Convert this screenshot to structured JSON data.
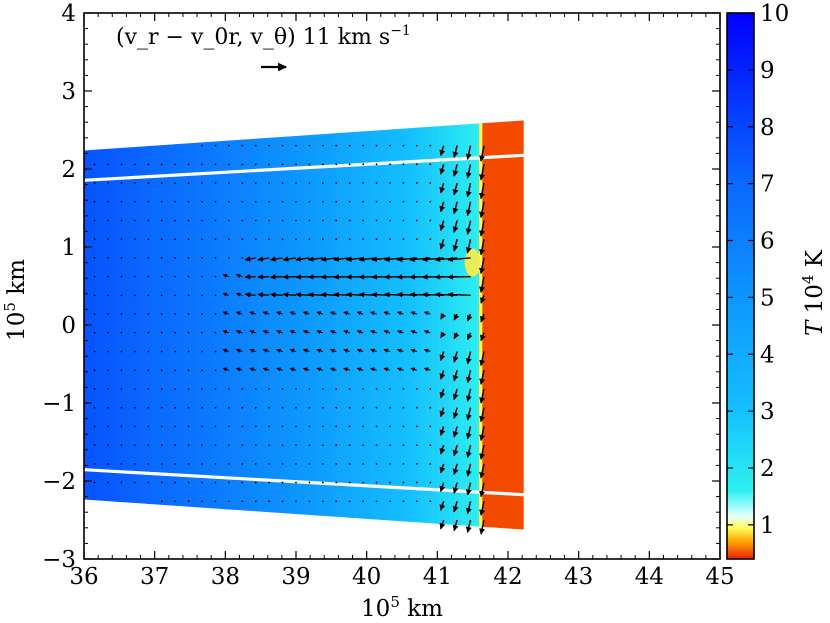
{
  "chart_data": {
    "type": "heatmap",
    "description_variable": "T",
    "xlabel": "10^5 km",
    "ylabel": "10^5 km",
    "xlim": [
      36,
      45
    ],
    "ylim": [
      -3,
      4
    ],
    "x_ticks": [
      "36",
      "37",
      "38",
      "39",
      "40",
      "41",
      "42",
      "43",
      "44",
      "45"
    ],
    "y_ticks": [
      "−3",
      "−2",
      "−1",
      "0",
      "1",
      "2",
      "3",
      "4"
    ],
    "colorbar": {
      "label": "T 10^4 K",
      "range": [
        0.4,
        10
      ],
      "ticks": [
        "1",
        "2",
        "3",
        "4",
        "5",
        "6",
        "7",
        "8",
        "9",
        "10"
      ],
      "stops": [
        {
          "v": 0.4,
          "color": "#ee1f00"
        },
        {
          "v": 0.7,
          "color": "#ffa000"
        },
        {
          "v": 0.95,
          "color": "#ffff5a"
        },
        {
          "v": 1.15,
          "color": "#e6ffff"
        },
        {
          "v": 1.6,
          "color": "#2ff0f0"
        },
        {
          "v": 3.0,
          "color": "#14c0ff"
        },
        {
          "v": 5.0,
          "color": "#0d96ff"
        },
        {
          "v": 7.0,
          "color": "#0a69ff"
        },
        {
          "v": 10.0,
          "color": "#0000ff"
        }
      ]
    },
    "domain": {
      "r_inner": 36.0,
      "r_front": 41.72,
      "r_outer": 42.3,
      "theta_half_deg": 3.55,
      "T_cold": 0.5,
      "T_inner_edge": 7.6,
      "T_front": 1.6
    },
    "white_lines_theta_deg": [
      2.95,
      -2.95
    ],
    "velocity_reference": {
      "label": "(v_r − v_0r,  v_θ) 11 km s^−1",
      "magnitude_km_s": 11
    }
  },
  "annotation": {
    "arrow_label": "(v_r − v_0r,  v_θ) 11 km s",
    "arrow_label_exp": "−1"
  },
  "axes": {
    "x_title_base": "10",
    "x_title_exp": "5",
    "x_title_unit": " km",
    "y_title_base": "10",
    "y_title_exp": "5",
    "y_title_unit": " km"
  },
  "colorbar_title": {
    "var": "T",
    "base": " 10",
    "exp": "4",
    "unit": " K"
  }
}
